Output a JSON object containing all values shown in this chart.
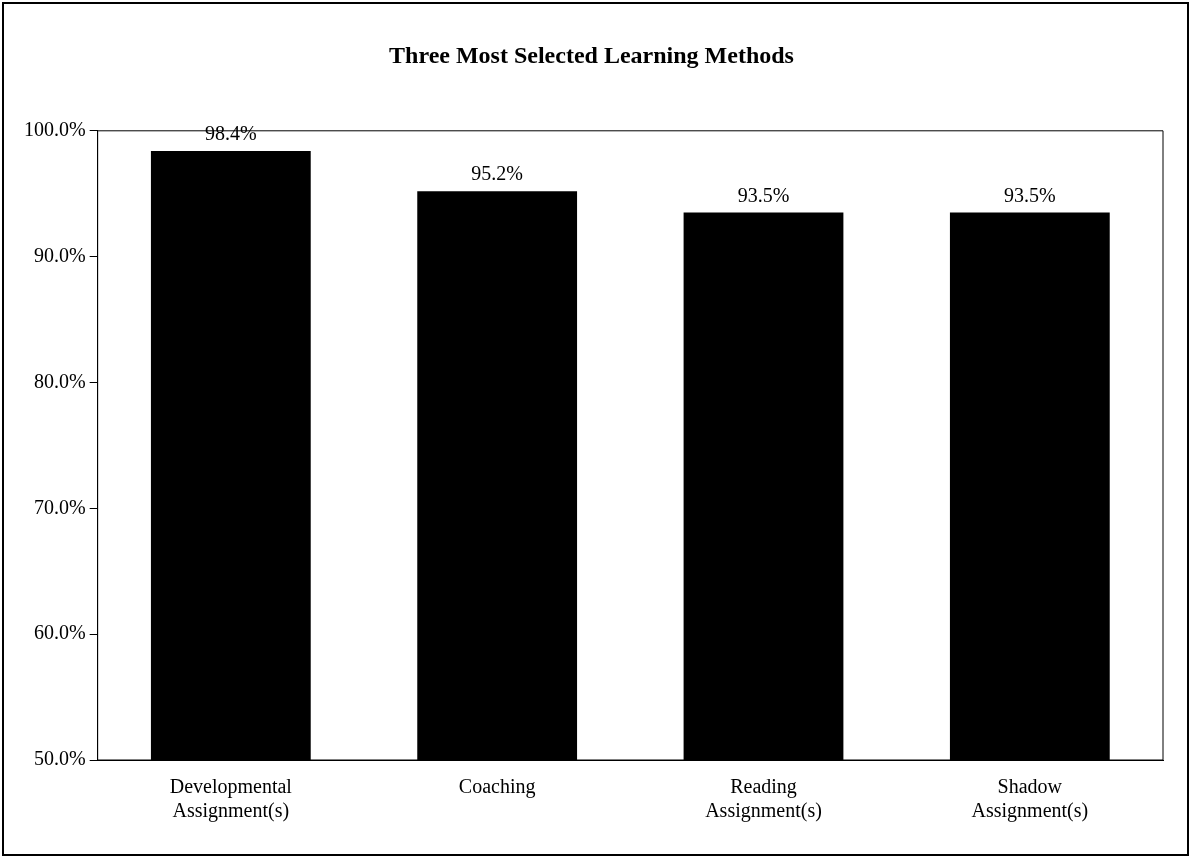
{
  "chart_data": {
    "type": "bar",
    "title": "Three Most Selected Learning Methods",
    "categories": [
      "Developmental Assignment(s)",
      "Coaching",
      "Reading Assignment(s)",
      "Shadow Assignment(s)"
    ],
    "values": [
      98.4,
      95.2,
      93.5,
      93.5
    ],
    "color": "#000000",
    "ylim": [
      50,
      100
    ],
    "yticks": [
      {
        "value": 50,
        "label": "50.0%"
      },
      {
        "value": 60,
        "label": "60.0%"
      },
      {
        "value": 70,
        "label": "70.0%"
      },
      {
        "value": 80,
        "label": "80.0%"
      },
      {
        "value": 90,
        "label": "90.0%"
      },
      {
        "value": 100,
        "label": "100.0%"
      }
    ],
    "value_labels": [
      "98.4%",
      "95.2%",
      "93.5%",
      "93.5%"
    ],
    "grid": false,
    "legend": false
  }
}
